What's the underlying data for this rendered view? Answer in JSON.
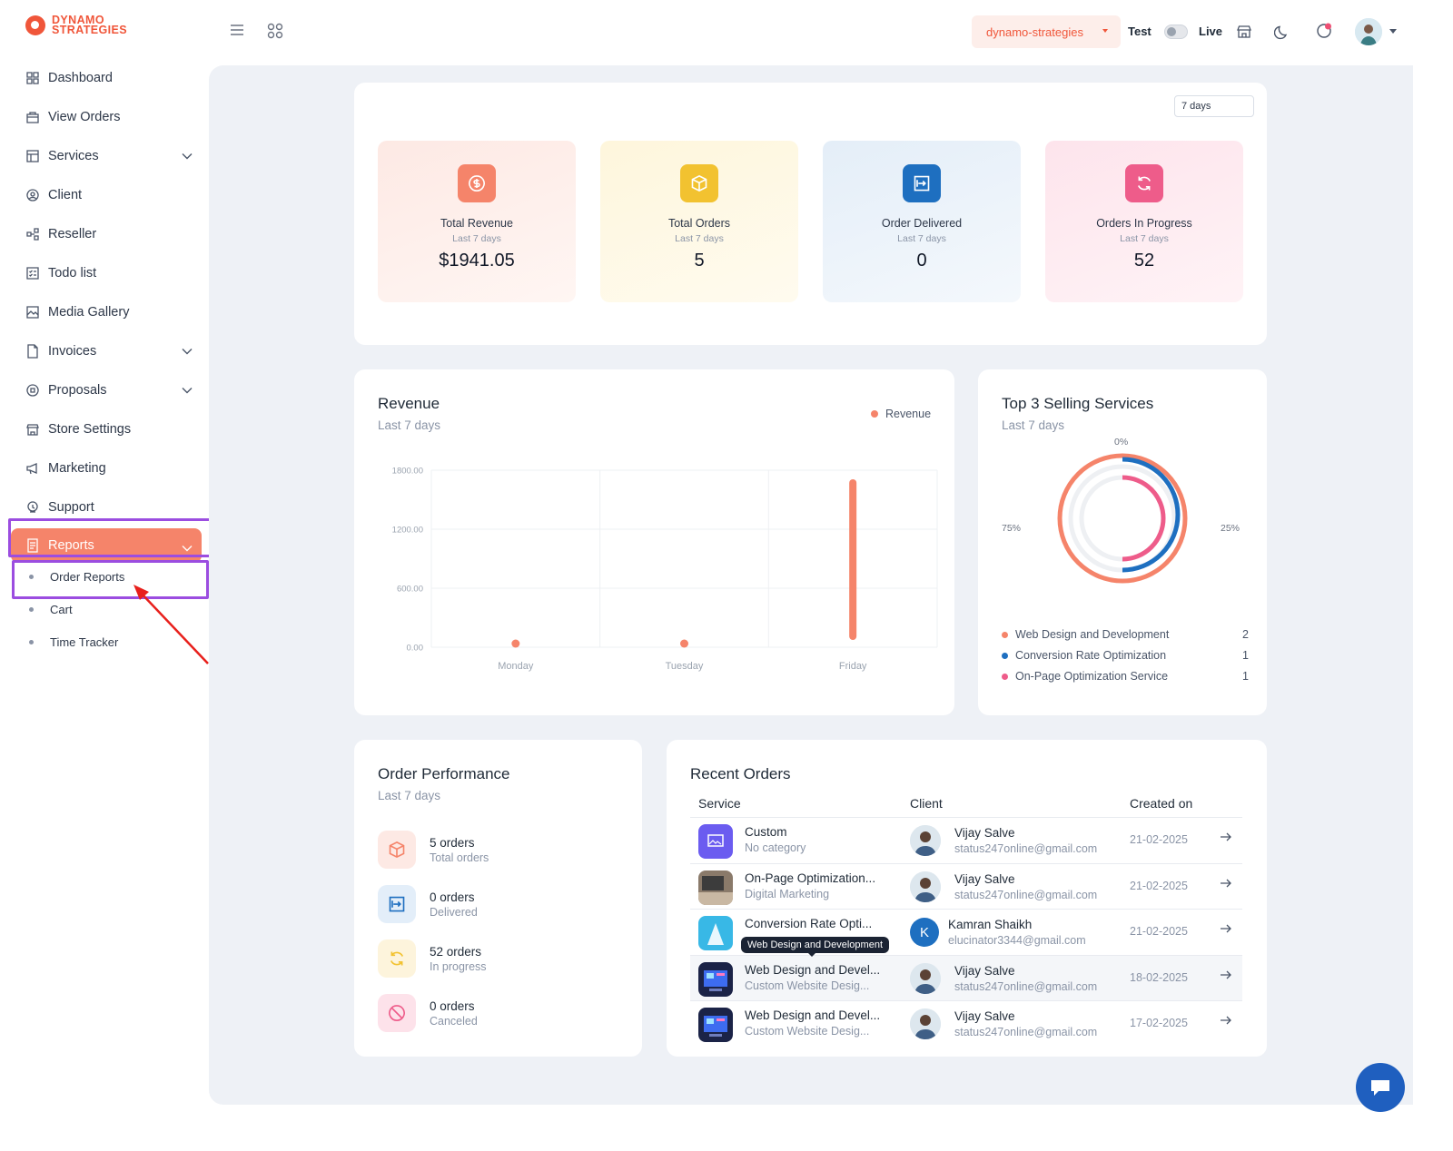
{
  "brand": {
    "line1": "DYNAMO",
    "line2": "STRATEGIES",
    "color": "#f0563a"
  },
  "sidebar": {
    "items": [
      {
        "label": "Dashboard",
        "icon": "dashboard-icon"
      },
      {
        "label": "View Orders",
        "icon": "orders-icon"
      },
      {
        "label": "Services",
        "icon": "services-icon",
        "expandable": true
      },
      {
        "label": "Client",
        "icon": "client-icon"
      },
      {
        "label": "Reseller",
        "icon": "reseller-icon"
      },
      {
        "label": "Todo list",
        "icon": "todo-icon"
      },
      {
        "label": "Media Gallery",
        "icon": "media-icon"
      },
      {
        "label": "Invoices",
        "icon": "invoice-icon",
        "expandable": true
      },
      {
        "label": "Proposals",
        "icon": "proposal-icon",
        "expandable": true
      },
      {
        "label": "Store Settings",
        "icon": "store-icon"
      },
      {
        "label": "Marketing",
        "icon": "megaphone-icon"
      },
      {
        "label": "Support",
        "icon": "support-icon"
      },
      {
        "label": "Reports",
        "icon": "report-icon",
        "expandable": true,
        "active": true
      }
    ],
    "reports_sub": [
      "Order Reports",
      "Cart",
      "Time Tracker"
    ]
  },
  "topbar": {
    "store": "dynamo-strategies",
    "mode_test": "Test",
    "mode_live": "Live"
  },
  "overview": {
    "range": "7 days",
    "stats": [
      {
        "title": "Total Revenue",
        "sub": "Last 7 days",
        "value": "$1941.05",
        "icon": "dollar-icon"
      },
      {
        "title": "Total Orders",
        "sub": "Last 7 days",
        "value": "5",
        "icon": "box-icon"
      },
      {
        "title": "Order Delivered",
        "sub": "Last 7 days",
        "value": "0",
        "icon": "delivered-icon"
      },
      {
        "title": "Orders In Progress",
        "sub": "Last 7 days",
        "value": "52",
        "icon": "refresh-icon"
      }
    ]
  },
  "revenue": {
    "title": "Revenue",
    "sub": "Last 7 days",
    "legend": "Revenue"
  },
  "chart_data": {
    "type": "bar",
    "categories": [
      "Monday",
      "Tuesday",
      "Friday"
    ],
    "series": [
      {
        "name": "Revenue",
        "values": [
          0,
          0,
          1941.05
        ],
        "color": "#f5846a"
      }
    ],
    "yticks": [
      "1800.00",
      "1200.00",
      "600.00",
      "0.00"
    ],
    "ylim": [
      0,
      1800
    ],
    "grid": true,
    "legend": "top-right"
  },
  "top_services": {
    "title": "Top 3 Selling Services",
    "sub": "Last 7 days",
    "label_top": "0%",
    "label_left": "75%",
    "label_right": "25%",
    "items": [
      {
        "name": "Web Design and Development",
        "count": "2",
        "color": "#f5846a"
      },
      {
        "name": "Conversion Rate Optimization",
        "count": "1",
        "color": "#1e6fc0"
      },
      {
        "name": "On-Page Optimization Service",
        "count": "1",
        "color": "#ee5c8a"
      }
    ]
  },
  "performance": {
    "title": "Order Performance",
    "sub": "Last 7 days",
    "rows": [
      {
        "main": "5 orders",
        "sub": "Total orders",
        "icon": "box-icon",
        "bg": "#fde9e4",
        "fg": "#f5846a"
      },
      {
        "main": "0 orders",
        "sub": "Delivered",
        "icon": "delivered-icon",
        "bg": "#e3eef9",
        "fg": "#1e6fc0"
      },
      {
        "main": "52 orders",
        "sub": "In progress",
        "icon": "refresh-icon",
        "bg": "#fdf4dc",
        "fg": "#f2c230"
      },
      {
        "main": "0 orders",
        "sub": "Canceled",
        "icon": "cancel-icon",
        "bg": "#fde2ea",
        "fg": "#ee5c8a"
      }
    ]
  },
  "recent": {
    "title": "Recent Orders",
    "headers": [
      "Service",
      "Client",
      "Created on"
    ],
    "rows": [
      {
        "service": "Custom",
        "category": "No category",
        "client": "Vijay Salve",
        "email": "status247online@gmail.com",
        "date": "21-02-2025",
        "thumb": "custom"
      },
      {
        "service": "On-Page Optimization...",
        "category": "Digital Marketing",
        "client": "Vijay Salve",
        "email": "status247online@gmail.com",
        "date": "21-02-2025",
        "thumb": "laptop"
      },
      {
        "service": "Conversion Rate Opti...",
        "category": "",
        "client": "Kamran Shaikh",
        "email": "elucinator3344@gmail.com",
        "date": "21-02-2025",
        "thumb": "cro",
        "initial": "K"
      },
      {
        "service": "Web Design and Devel...",
        "category": "Custom Website Desig...",
        "client": "Vijay Salve",
        "email": "status247online@gmail.com",
        "date": "18-02-2025",
        "thumb": "web"
      },
      {
        "service": "Web Design and Devel...",
        "category": "Custom Website Desig...",
        "client": "Vijay Salve",
        "email": "status247online@gmail.com",
        "date": "17-02-2025",
        "thumb": "web"
      }
    ],
    "tooltip": "Web Design and Development"
  }
}
